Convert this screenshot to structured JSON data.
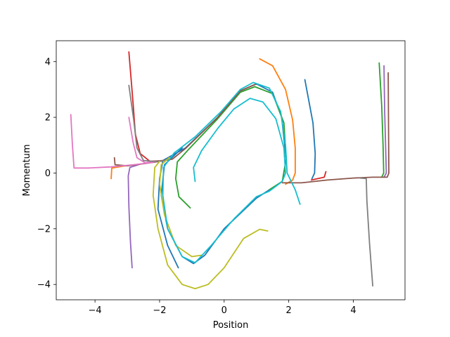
{
  "chart_data": {
    "type": "line",
    "title": "",
    "xlabel": "Position",
    "ylabel": "Momentum",
    "xlim": [
      -5.2,
      5.6
    ],
    "ylim": [
      -4.55,
      4.75
    ],
    "xticks": [
      -4,
      -2,
      0,
      2,
      4
    ],
    "xtick_labels": [
      "−4",
      "−2",
      "0",
      "2",
      "4"
    ],
    "yticks": [
      -4,
      -2,
      0,
      2,
      4
    ],
    "ytick_labels": [
      "−4",
      "−2",
      "0",
      "2",
      "4"
    ],
    "grid": false,
    "legend": false,
    "series": [
      {
        "color": "#1f77b4",
        "points": [
          [
            -1.42,
            -3.4
          ],
          [
            -1.75,
            -2.6
          ],
          [
            -2.05,
            -1.3
          ],
          [
            -2.0,
            -0.2
          ],
          [
            -1.9,
            0.45
          ],
          [
            -1.2,
            0.9
          ],
          [
            -0.2,
            2.0
          ],
          [
            0.5,
            2.95
          ],
          [
            1.0,
            3.2
          ],
          [
            1.5,
            2.9
          ],
          [
            1.78,
            2.0
          ],
          [
            1.92,
            0.5
          ],
          [
            1.8,
            -0.3
          ],
          [
            1.0,
            -0.9
          ],
          [
            0.0,
            -2.0
          ],
          [
            -0.6,
            -2.95
          ],
          [
            -0.95,
            -3.25
          ],
          [
            -1.3,
            -3.0
          ],
          [
            -1.75,
            -2.0
          ],
          [
            -1.95,
            -0.8
          ],
          [
            -1.85,
            0.3
          ],
          [
            -1.3,
            0.9
          ]
        ]
      },
      {
        "color": "#1f77b4",
        "points": [
          [
            2.5,
            3.35
          ],
          [
            2.75,
            1.8
          ],
          [
            2.82,
            0.7
          ],
          [
            2.8,
            0.0
          ],
          [
            2.72,
            -0.2
          ]
        ]
      },
      {
        "color": "#ff7f0e",
        "points": [
          [
            -3.5,
            -0.2
          ],
          [
            -3.48,
            0.18
          ],
          [
            -3.1,
            0.25
          ],
          [
            -2.6,
            0.32
          ]
        ]
      },
      {
        "color": "#ff7f0e",
        "points": [
          [
            1.1,
            4.1
          ],
          [
            1.5,
            3.85
          ],
          [
            1.9,
            3.0
          ],
          [
            2.12,
            1.9
          ],
          [
            2.2,
            0.9
          ],
          [
            2.2,
            0.0
          ],
          [
            2.12,
            -0.25
          ],
          [
            1.9,
            -0.4
          ]
        ]
      },
      {
        "color": "#2ca02c",
        "points": [
          [
            -1.05,
            -1.25
          ],
          [
            -1.4,
            -0.85
          ],
          [
            -1.5,
            -0.2
          ],
          [
            -1.45,
            0.4
          ],
          [
            -1.1,
            0.85
          ],
          [
            -0.2,
            1.95
          ],
          [
            0.5,
            2.9
          ],
          [
            0.95,
            3.1
          ],
          [
            1.5,
            2.85
          ],
          [
            1.85,
            1.8
          ],
          [
            1.92,
            0.5
          ],
          [
            1.8,
            -0.3
          ],
          [
            1.4,
            -0.6
          ]
        ]
      },
      {
        "color": "#2ca02c",
        "points": [
          [
            4.8,
            3.95
          ],
          [
            4.88,
            2.4
          ],
          [
            4.92,
            1.0
          ],
          [
            4.94,
            0.0
          ],
          [
            4.88,
            -0.15
          ]
        ]
      },
      {
        "color": "#d62728",
        "points": [
          [
            -2.95,
            4.35
          ],
          [
            -2.82,
            2.5
          ],
          [
            -2.75,
            1.4
          ],
          [
            -2.6,
            0.7
          ],
          [
            -2.3,
            0.42
          ],
          [
            -1.9,
            0.45
          ]
        ]
      },
      {
        "color": "#d62728",
        "points": [
          [
            3.15,
            0.05
          ],
          [
            3.1,
            -0.15
          ],
          [
            2.7,
            -0.25
          ]
        ]
      },
      {
        "color": "#9467bd",
        "points": [
          [
            -2.85,
            -3.4
          ],
          [
            -2.9,
            -2.5
          ],
          [
            -2.95,
            -1.2
          ],
          [
            -2.97,
            -0.1
          ],
          [
            -2.92,
            0.2
          ],
          [
            -2.6,
            0.32
          ]
        ]
      },
      {
        "color": "#9467bd",
        "points": [
          [
            4.95,
            3.85
          ],
          [
            4.97,
            2.2
          ],
          [
            5.0,
            1.0
          ],
          [
            5.02,
            0.0
          ],
          [
            4.95,
            -0.15
          ]
        ]
      },
      {
        "color": "#8c564b",
        "points": [
          [
            -3.4,
            0.55
          ],
          [
            -3.38,
            0.3
          ],
          [
            -3.0,
            0.26
          ],
          [
            -2.4,
            0.35
          ],
          [
            -2.0,
            0.42
          ],
          [
            -1.6,
            0.5
          ],
          [
            -1.2,
            0.88
          ],
          [
            -0.2,
            2.0
          ],
          [
            0.5,
            2.95
          ],
          [
            1.0,
            3.2
          ]
        ]
      },
      {
        "color": "#8c564b",
        "points": [
          [
            1.8,
            -0.35
          ],
          [
            2.4,
            -0.35
          ],
          [
            3.2,
            -0.25
          ],
          [
            4.0,
            -0.18
          ],
          [
            4.6,
            -0.15
          ],
          [
            5.05,
            -0.15
          ],
          [
            5.1,
            0.0
          ],
          [
            5.08,
            3.6
          ]
        ]
      },
      {
        "color": "#e377c2",
        "points": [
          [
            -4.75,
            2.1
          ],
          [
            -4.7,
            1.0
          ],
          [
            -4.65,
            0.18
          ],
          [
            -4.2,
            0.18
          ],
          [
            -3.5,
            0.22
          ],
          [
            -2.8,
            0.3
          ],
          [
            -2.2,
            0.38
          ]
        ]
      },
      {
        "color": "#e377c2",
        "points": [
          [
            -2.95,
            2.0
          ],
          [
            -2.82,
            1.1
          ],
          [
            -2.7,
            0.55
          ],
          [
            -2.45,
            0.37
          ],
          [
            -2.1,
            0.42
          ]
        ]
      },
      {
        "color": "#7f7f7f",
        "points": [
          [
            -2.95,
            3.15
          ],
          [
            -2.8,
            1.9
          ],
          [
            -2.7,
            0.9
          ],
          [
            -2.5,
            0.45
          ],
          [
            -2.2,
            0.42
          ],
          [
            -1.8,
            0.45
          ]
        ]
      },
      {
        "color": "#7f7f7f",
        "points": [
          [
            4.6,
            -4.05
          ],
          [
            4.5,
            -2.5
          ],
          [
            4.42,
            -1.0
          ],
          [
            4.4,
            -0.2
          ],
          [
            4.2,
            -0.18
          ]
        ]
      },
      {
        "color": "#bcbd22",
        "points": [
          [
            -0.7,
            -2.95
          ],
          [
            -1.0,
            -3.0
          ],
          [
            -1.5,
            -2.6
          ],
          [
            -1.85,
            -1.5
          ],
          [
            -2.0,
            -0.4
          ],
          [
            -1.95,
            0.3
          ],
          [
            -1.7,
            0.55
          ]
        ]
      },
      {
        "color": "#bcbd22",
        "points": [
          [
            1.35,
            -2.08
          ],
          [
            1.1,
            -2.02
          ],
          [
            0.6,
            -2.35
          ],
          [
            0.0,
            -3.4
          ],
          [
            -0.5,
            -4.0
          ],
          [
            -0.9,
            -4.15
          ],
          [
            -1.3,
            -4.0
          ],
          [
            -1.75,
            -3.3
          ],
          [
            -2.05,
            -2.0
          ],
          [
            -2.2,
            -0.8
          ],
          [
            -2.15,
            0.2
          ],
          [
            -2.0,
            0.42
          ]
        ]
      },
      {
        "color": "#17becf",
        "points": [
          [
            -0.9,
            -0.3
          ],
          [
            -0.95,
            0.2
          ],
          [
            -0.7,
            0.8
          ],
          [
            -0.2,
            1.6
          ],
          [
            0.3,
            2.3
          ],
          [
            0.8,
            2.68
          ],
          [
            1.2,
            2.55
          ],
          [
            1.6,
            1.95
          ],
          [
            1.85,
            0.9
          ],
          [
            1.9,
            0.0
          ],
          [
            1.8,
            -0.3
          ],
          [
            1.4,
            -0.65
          ],
          [
            1.0,
            -0.85
          ],
          [
            0.3,
            -1.65
          ],
          [
            -0.4,
            -2.6
          ],
          [
            -0.9,
            -3.22
          ],
          [
            -1.3,
            -3.0
          ],
          [
            -1.75,
            -2.0
          ],
          [
            -1.9,
            -0.8
          ],
          [
            -1.88,
            0.2
          ],
          [
            -1.55,
            0.72
          ],
          [
            -0.9,
            1.3
          ],
          [
            -0.1,
            2.2
          ],
          [
            0.5,
            3.0
          ],
          [
            0.9,
            3.25
          ],
          [
            1.4,
            3.05
          ],
          [
            1.75,
            2.2
          ],
          [
            1.9,
            1.0
          ],
          [
            1.95,
            0.0
          ],
          [
            2.2,
            -0.6
          ],
          [
            2.35,
            -1.12
          ]
        ]
      }
    ]
  }
}
